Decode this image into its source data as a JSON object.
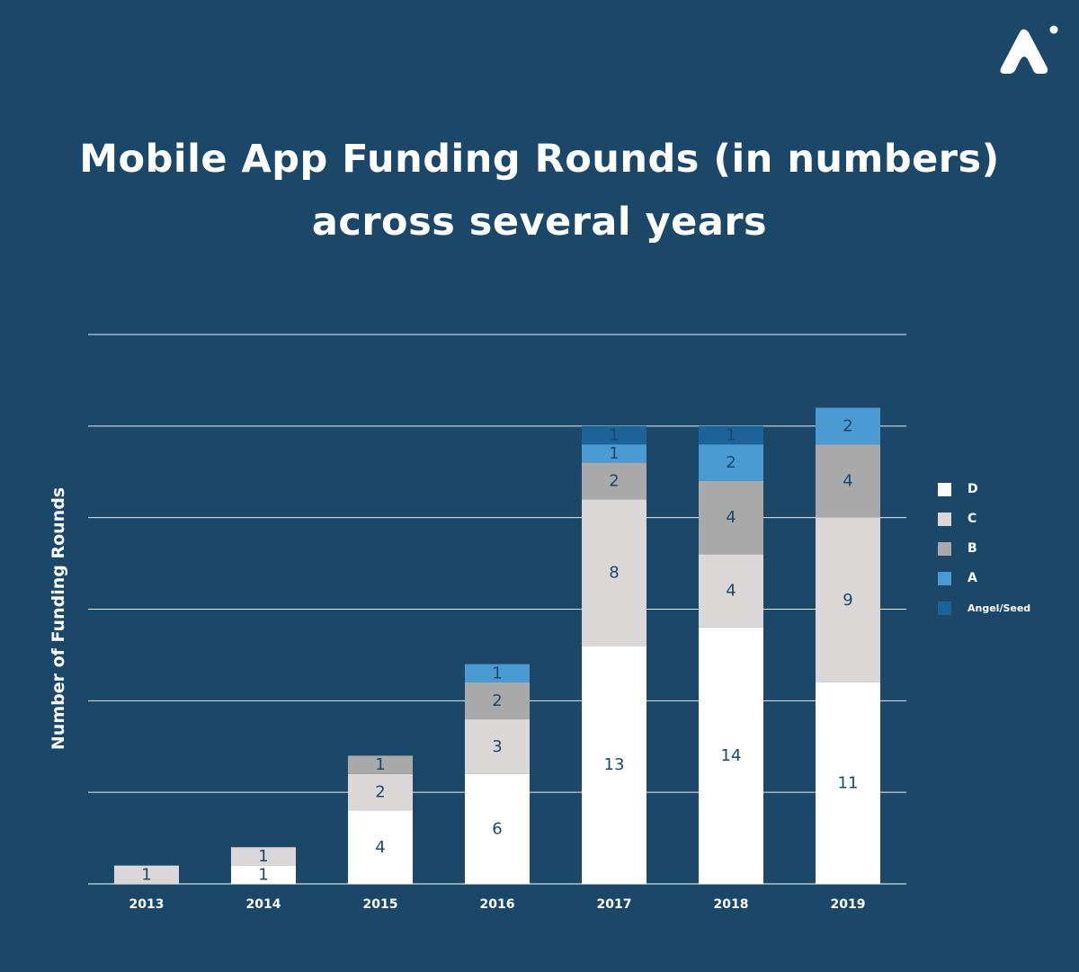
{
  "title_lines": [
    "Mobile App Funding Rounds (in numbers)",
    "across several years"
  ],
  "chart_data": {
    "type": "bar",
    "stacked": true,
    "title": "Mobile App Funding Rounds (in numbers) across several years",
    "xlabel": "",
    "ylabel": "Number of Funding Rounds",
    "categories": [
      "2013",
      "2014",
      "2015",
      "2016",
      "2017",
      "2018",
      "2019"
    ],
    "series": [
      {
        "name": "D",
        "color": "#ffffff",
        "values": [
          0,
          1,
          4,
          6,
          13,
          14,
          11
        ]
      },
      {
        "name": "C",
        "color": "#dbd7d7",
        "values": [
          1,
          1,
          2,
          3,
          8,
          4,
          9
        ]
      },
      {
        "name": "B",
        "color": "#a9a9a9",
        "values": [
          0,
          0,
          1,
          2,
          2,
          4,
          4
        ]
      },
      {
        "name": "A",
        "color": "#4a9ad3",
        "values": [
          0,
          0,
          0,
          1,
          1,
          2,
          2
        ]
      },
      {
        "name": "Angel/Seed",
        "color": "#1d6399",
        "values": [
          0,
          0,
          0,
          0,
          1,
          1,
          0
        ]
      }
    ],
    "ylim": [
      0,
      30
    ],
    "grid": true,
    "legend": "right"
  },
  "colors": {
    "background": "#1b4868",
    "label_dark": "#1b4868",
    "label_light": "#ffffff"
  },
  "logo": {
    "icon": "arch-logo-icon"
  }
}
